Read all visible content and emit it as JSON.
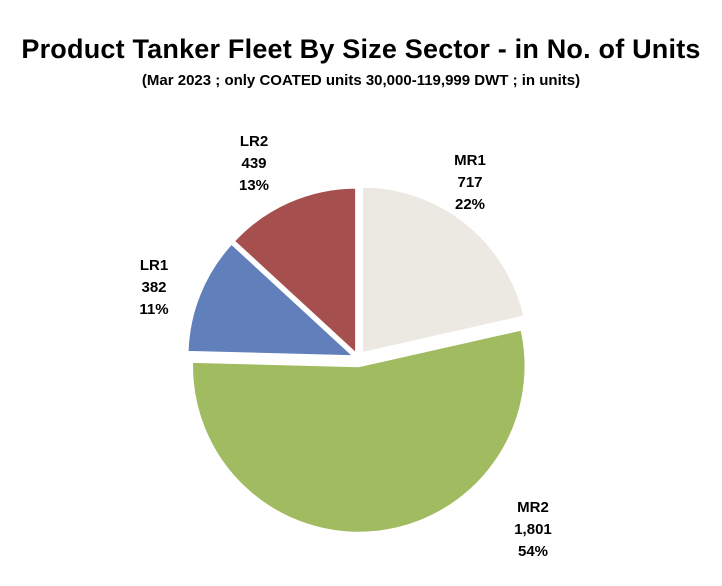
{
  "chart_data": {
    "type": "pie",
    "title": "Product Tanker Fleet By Size Sector - in No. of Units",
    "subtitle": "(Mar 2023 ; only COATED units 30,000-119,999 DWT ; in units)",
    "slices": [
      {
        "name": "MR1",
        "value": 717,
        "value_label": "717",
        "percent_label": "22%",
        "color": "#ECE9E3"
      },
      {
        "name": "MR2",
        "value": 1801,
        "value_label": "1,801",
        "percent_label": "54%",
        "color": "#A0BB60"
      },
      {
        "name": "LR1",
        "value": 382,
        "value_label": "382",
        "percent_label": "11%",
        "color": "#607FBB"
      },
      {
        "name": "LR2",
        "value": 439,
        "value_label": "439",
        "percent_label": "13%",
        "color": "#A64F4F"
      }
    ],
    "start_angle": "12 o'clock",
    "direction": "clockwise",
    "legend": "none"
  }
}
